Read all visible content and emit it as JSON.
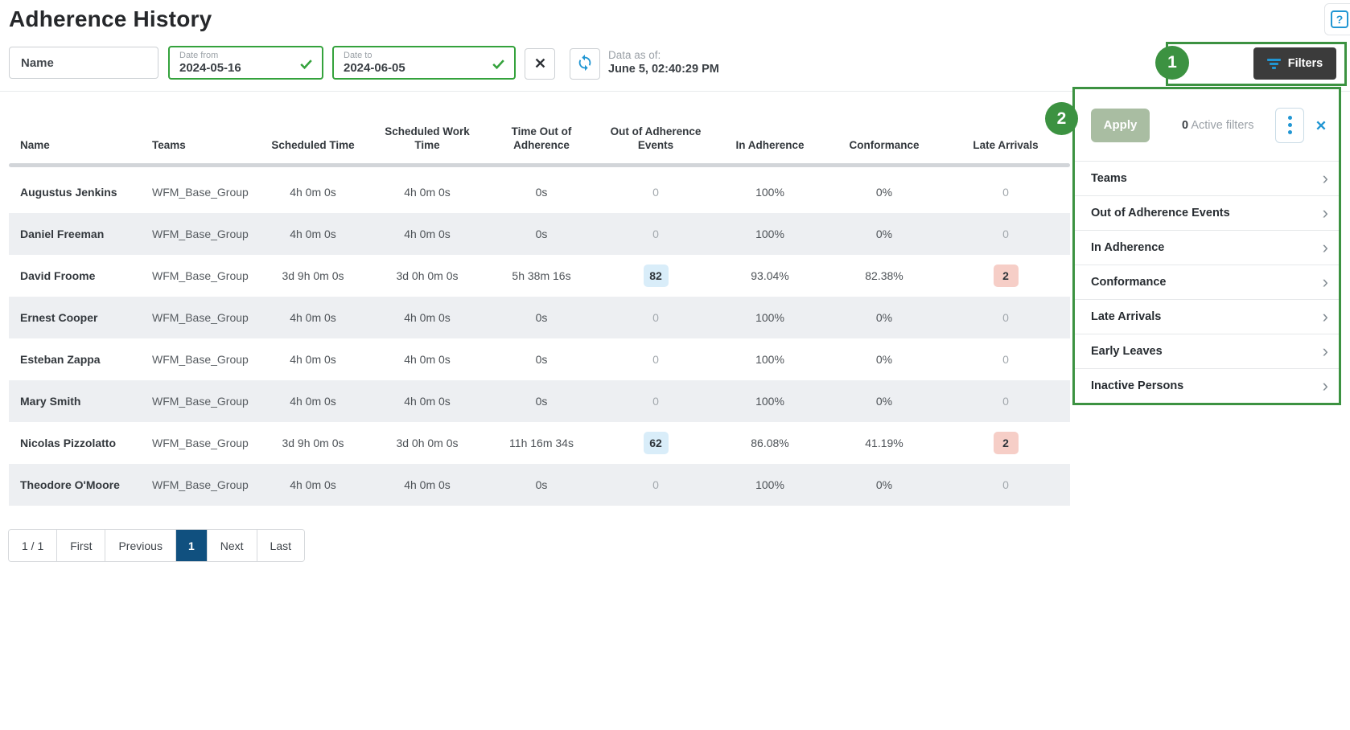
{
  "page": {
    "title": "Adherence History"
  },
  "icons": {
    "help": "?",
    "clear": "x-cross",
    "refresh": "sync-arrows",
    "filter": "filter-bars",
    "check": "checkmark",
    "menu": "vertical-dots",
    "close": "x-cross",
    "chevron": "›"
  },
  "toolbar": {
    "name_placeholder": "Name",
    "date_from_label": "Date from",
    "date_from_value": "2024-05-16",
    "date_to_label": "Date to",
    "date_to_value": "2024-06-05",
    "data_as_of_label": "Data as of:",
    "data_as_of_value": "June 5, 02:40:29 PM",
    "filters_label": "Filters"
  },
  "annotations": {
    "callout_1": "1",
    "callout_2": "2"
  },
  "table": {
    "columns": [
      "Name",
      "Teams",
      "Scheduled Time",
      "Scheduled Work Time",
      "Time Out of Adherence",
      "Out of Adherence Events",
      "In Adherence",
      "Conformance",
      "Late Arrivals"
    ],
    "rows": [
      {
        "name": "Augustus Jenkins",
        "team": "WFM_Base_Group",
        "scheduled_time": "4h 0m 0s",
        "scheduled_work_time": "4h 0m 0s",
        "time_out_of_adherence": "0s",
        "out_of_adherence_events": "0",
        "events_highlighted": false,
        "in_adherence": "100%",
        "conformance": "0%",
        "late_arrivals": "0",
        "late_arrivals_highlighted": false
      },
      {
        "name": "Daniel Freeman",
        "team": "WFM_Base_Group",
        "scheduled_time": "4h 0m 0s",
        "scheduled_work_time": "4h 0m 0s",
        "time_out_of_adherence": "0s",
        "out_of_adherence_events": "0",
        "events_highlighted": false,
        "in_adherence": "100%",
        "conformance": "0%",
        "late_arrivals": "0",
        "late_arrivals_highlighted": false
      },
      {
        "name": "David Froome",
        "team": "WFM_Base_Group",
        "scheduled_time": "3d 9h 0m 0s",
        "scheduled_work_time": "3d 0h 0m 0s",
        "time_out_of_adherence": "5h 38m 16s",
        "out_of_adherence_events": "82",
        "events_highlighted": true,
        "in_adherence": "93.04%",
        "conformance": "82.38%",
        "late_arrivals": "2",
        "late_arrivals_highlighted": true
      },
      {
        "name": "Ernest Cooper",
        "team": "WFM_Base_Group",
        "scheduled_time": "4h 0m 0s",
        "scheduled_work_time": "4h 0m 0s",
        "time_out_of_adherence": "0s",
        "out_of_adherence_events": "0",
        "events_highlighted": false,
        "in_adherence": "100%",
        "conformance": "0%",
        "late_arrivals": "0",
        "late_arrivals_highlighted": false
      },
      {
        "name": "Esteban Zappa",
        "team": "WFM_Base_Group",
        "scheduled_time": "4h 0m 0s",
        "scheduled_work_time": "4h 0m 0s",
        "time_out_of_adherence": "0s",
        "out_of_adherence_events": "0",
        "events_highlighted": false,
        "in_adherence": "100%",
        "conformance": "0%",
        "late_arrivals": "0",
        "late_arrivals_highlighted": false
      },
      {
        "name": "Mary Smith",
        "team": "WFM_Base_Group",
        "scheduled_time": "4h 0m 0s",
        "scheduled_work_time": "4h 0m 0s",
        "time_out_of_adherence": "0s",
        "out_of_adherence_events": "0",
        "events_highlighted": false,
        "in_adherence": "100%",
        "conformance": "0%",
        "late_arrivals": "0",
        "late_arrivals_highlighted": false
      },
      {
        "name": "Nicolas Pizzolatto",
        "team": "WFM_Base_Group",
        "scheduled_time": "3d 9h 0m 0s",
        "scheduled_work_time": "3d 0h 0m 0s",
        "time_out_of_adherence": "11h 16m 34s",
        "out_of_adherence_events": "62",
        "events_highlighted": true,
        "in_adherence": "86.08%",
        "conformance": "41.19%",
        "late_arrivals": "2",
        "late_arrivals_highlighted": true
      },
      {
        "name": "Theodore O'Moore",
        "team": "WFM_Base_Group",
        "scheduled_time": "4h 0m 0s",
        "scheduled_work_time": "4h 0m 0s",
        "time_out_of_adherence": "0s",
        "out_of_adherence_events": "0",
        "events_highlighted": false,
        "in_adherence": "100%",
        "conformance": "0%",
        "late_arrivals": "0",
        "late_arrivals_highlighted": false
      }
    ]
  },
  "pagination": {
    "page_of": "1 / 1",
    "first": "First",
    "previous": "Previous",
    "page": "1",
    "next": "Next",
    "last": "Last"
  },
  "filters_panel": {
    "apply_label": "Apply",
    "active_count": "0",
    "active_label": "Active filters",
    "items": [
      "Teams",
      "Out of Adherence Events",
      "In Adherence",
      "Conformance",
      "Late Arrivals",
      "Early Leaves",
      "Inactive Persons"
    ]
  },
  "colors": {
    "green": "#3c9241",
    "green-bright": "#34a23c",
    "blue": "#2196d3",
    "dark-btn": "#3b3b3b",
    "active-page": "#10507f",
    "badge-blue": "#d9edf9",
    "badge-pink": "#f6cec7",
    "row-alt": "#edeff2",
    "apply-green": "#a9bda2"
  }
}
